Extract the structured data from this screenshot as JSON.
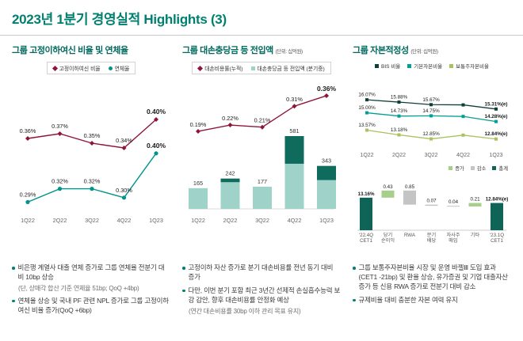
{
  "page": {
    "title": "2023년 1분기 경영실적 Highlights (3)"
  },
  "colors": {
    "brand_green": "#00806f",
    "maroon": "#8e1537",
    "teal": "#00958a",
    "bar_light": "#9fd3ca",
    "bar_dark": "#0f6b5c",
    "bis": "#103f3a",
    "tier1": "#00a096",
    "cet1": "#a9c25d",
    "inc": "#a7cf8c",
    "dec": "#c4c4c4",
    "total": "#0d6457"
  },
  "panels": [
    {
      "title": "그룹 고정이하여신 비율 및 연체율",
      "unit": "",
      "legend": [
        {
          "label": "고정이하여신 비율",
          "marker": "diamond",
          "color": "#8e1537"
        },
        {
          "label": "연체율",
          "marker": "circle",
          "color": "#00958a"
        }
      ],
      "bullets": [
        {
          "text": "비은행 계열사 대출 연체 증가로 그룹 연체율 전분기 대비 10bp 상승",
          "sub": "(단, 상매각 합산 기준 연체율 51bp; QoQ +4bp)"
        },
        {
          "text": "연체율 상승 및 국내 PF 관련 NPL 증가로 그룹 고정이하여신 비율 증가(QoQ +6bp)",
          "sub": ""
        }
      ]
    },
    {
      "title": "그룹 대손충당금 등 전입액",
      "unit": "(단위: 십억원)",
      "legend": [
        {
          "label": "대손비용률(누적)",
          "marker": "diamond",
          "color": "#8e1537"
        },
        {
          "label": "대손충당금 등 전입액 (분기중)",
          "marker": "square",
          "color": "#9fd3ca"
        }
      ],
      "bullets": [
        {
          "text": "고정이하 자산 증가로 분기 대손비용률 전년 동기 대비 증가",
          "sub": ""
        },
        {
          "text": "다만, 이번 분기 포함 최근 3년간 선제적 손실흡수능력 보강 감안, 향후 대손비용률 안정화 예상",
          "sub": "(연간 대손비용률 30bp 이하 관리 목표 유지)"
        }
      ]
    },
    {
      "title": "그룹 자본적정성",
      "unit": "(단위: 십억원)",
      "legend": [
        {
          "label": "BIS 비율",
          "marker": "square",
          "color": "#103f3a"
        },
        {
          "label": "기본자본비율",
          "marker": "square",
          "color": "#00a096"
        },
        {
          "label": "보통주자본비율",
          "marker": "square",
          "color": "#a9c25d"
        }
      ],
      "legend2": [
        {
          "label": "증가",
          "color": "#a7cf8c"
        },
        {
          "label": "감소",
          "color": "#c4c4c4"
        },
        {
          "label": "총계",
          "color": "#0d6457"
        }
      ],
      "bullets": [
        {
          "text": "그룹 보통주자본비율 시장 및 운영 바젤Ⅲ 도입 효과(CET1 -21bp) 및 환율 상승, 유가증권 및 기업 대출자산 증가 등 신용 RWA 증가로 전분기 대비 감소",
          "sub": ""
        },
        {
          "text": "규제비율 대비 충분한 자본 여력 유지",
          "sub": ""
        }
      ]
    }
  ],
  "chart_data": [
    {
      "id": "npl",
      "type": "line",
      "title": "그룹 고정이하여신 비율 및 연체율",
      "unit": "%",
      "categories": [
        "1Q22",
        "2Q22",
        "3Q22",
        "4Q22",
        "1Q23"
      ],
      "series": [
        {
          "name": "고정이하여신 비율",
          "marker": "diamond",
          "color": "#8e1537",
          "values": [
            0.36,
            0.37,
            0.35,
            0.34,
            0.4
          ],
          "labels": [
            "0.36%",
            "0.37%",
            "0.35%",
            "0.34%",
            "0.40%"
          ]
        },
        {
          "name": "연체율",
          "marker": "circle",
          "color": "#00958a",
          "values": [
            0.29,
            0.32,
            0.32,
            0.3,
            0.4
          ],
          "labels": [
            "0.29%",
            "0.32%",
            "0.32%",
            "0.30%",
            "0.40%"
          ]
        }
      ]
    },
    {
      "id": "provision",
      "type": "bar-line",
      "title": "그룹 대손충당금 등 전입액",
      "unit": "십억원",
      "categories": [
        "1Q22",
        "2Q22",
        "3Q22",
        "4Q22",
        "1Q23"
      ],
      "bars": {
        "name": "대손충당금 등 전입액 (분기중)",
        "values": [
          165,
          242,
          177,
          581,
          343
        ],
        "labels": [
          "165",
          "242",
          "177",
          "581",
          "343"
        ],
        "dark_fraction": [
          0,
          0.12,
          0,
          0.38,
          0.33
        ]
      },
      "line": {
        "name": "대손비용률(누적)",
        "values": [
          0.19,
          0.22,
          0.21,
          0.31,
          0.36
        ],
        "labels": [
          "0.19%",
          "0.22%",
          "0.21%",
          "0.31%",
          "0.36%"
        ]
      }
    },
    {
      "id": "capital",
      "type": "line",
      "title": "그룹 자본적정성",
      "unit": "%",
      "categories": [
        "1Q22",
        "2Q22",
        "3Q22",
        "4Q22",
        "1Q23"
      ],
      "ylim": [
        12.3,
        16.6
      ],
      "series": [
        {
          "name": "BIS 비율",
          "color": "#103f3a",
          "values": [
            16.07,
            15.88,
            15.67,
            15.65,
            15.31
          ],
          "labels": [
            "16.07%",
            "15.88%",
            "15.67%",
            "",
            "15.31%(e)"
          ]
        },
        {
          "name": "기본자본비율",
          "color": "#00a096",
          "values": [
            15.0,
            14.73,
            14.75,
            14.7,
            14.28
          ],
          "labels": [
            "15.00%",
            "14.73%",
            "14.75%",
            "",
            "14.28%(e)"
          ]
        },
        {
          "name": "보통주자본비율",
          "color": "#a9c25d",
          "values": [
            13.57,
            13.18,
            12.85,
            13.16,
            12.84
          ],
          "labels": [
            "13.57%",
            "13.18%",
            "12.85%",
            "",
            "12.84%(e)"
          ]
        }
      ]
    },
    {
      "id": "cet1-waterfall",
      "type": "waterfall",
      "title": "CET1 비율 변동",
      "start": {
        "caption": [
          "'22.4Q",
          "CET1"
        ],
        "label": "13.16%",
        "value": 13.16
      },
      "steps": [
        {
          "caption": [
            "당기",
            "순이익"
          ],
          "label": "0.43",
          "delta": 0.43
        },
        {
          "caption": [
            "RWA"
          ],
          "label": "0.85",
          "delta": -0.85
        },
        {
          "caption": [
            "분기",
            "배당"
          ],
          "label": "0.07",
          "delta": -0.07
        },
        {
          "caption": [
            "자사주",
            "매입"
          ],
          "label": "0.04",
          "delta": -0.04
        },
        {
          "caption": [
            "기타"
          ],
          "label": "0.21",
          "delta": 0.21
        }
      ],
      "end": {
        "caption": [
          "'23.1Q",
          "CET1"
        ],
        "label": "12.84%(e)",
        "value": 12.84
      }
    }
  ]
}
